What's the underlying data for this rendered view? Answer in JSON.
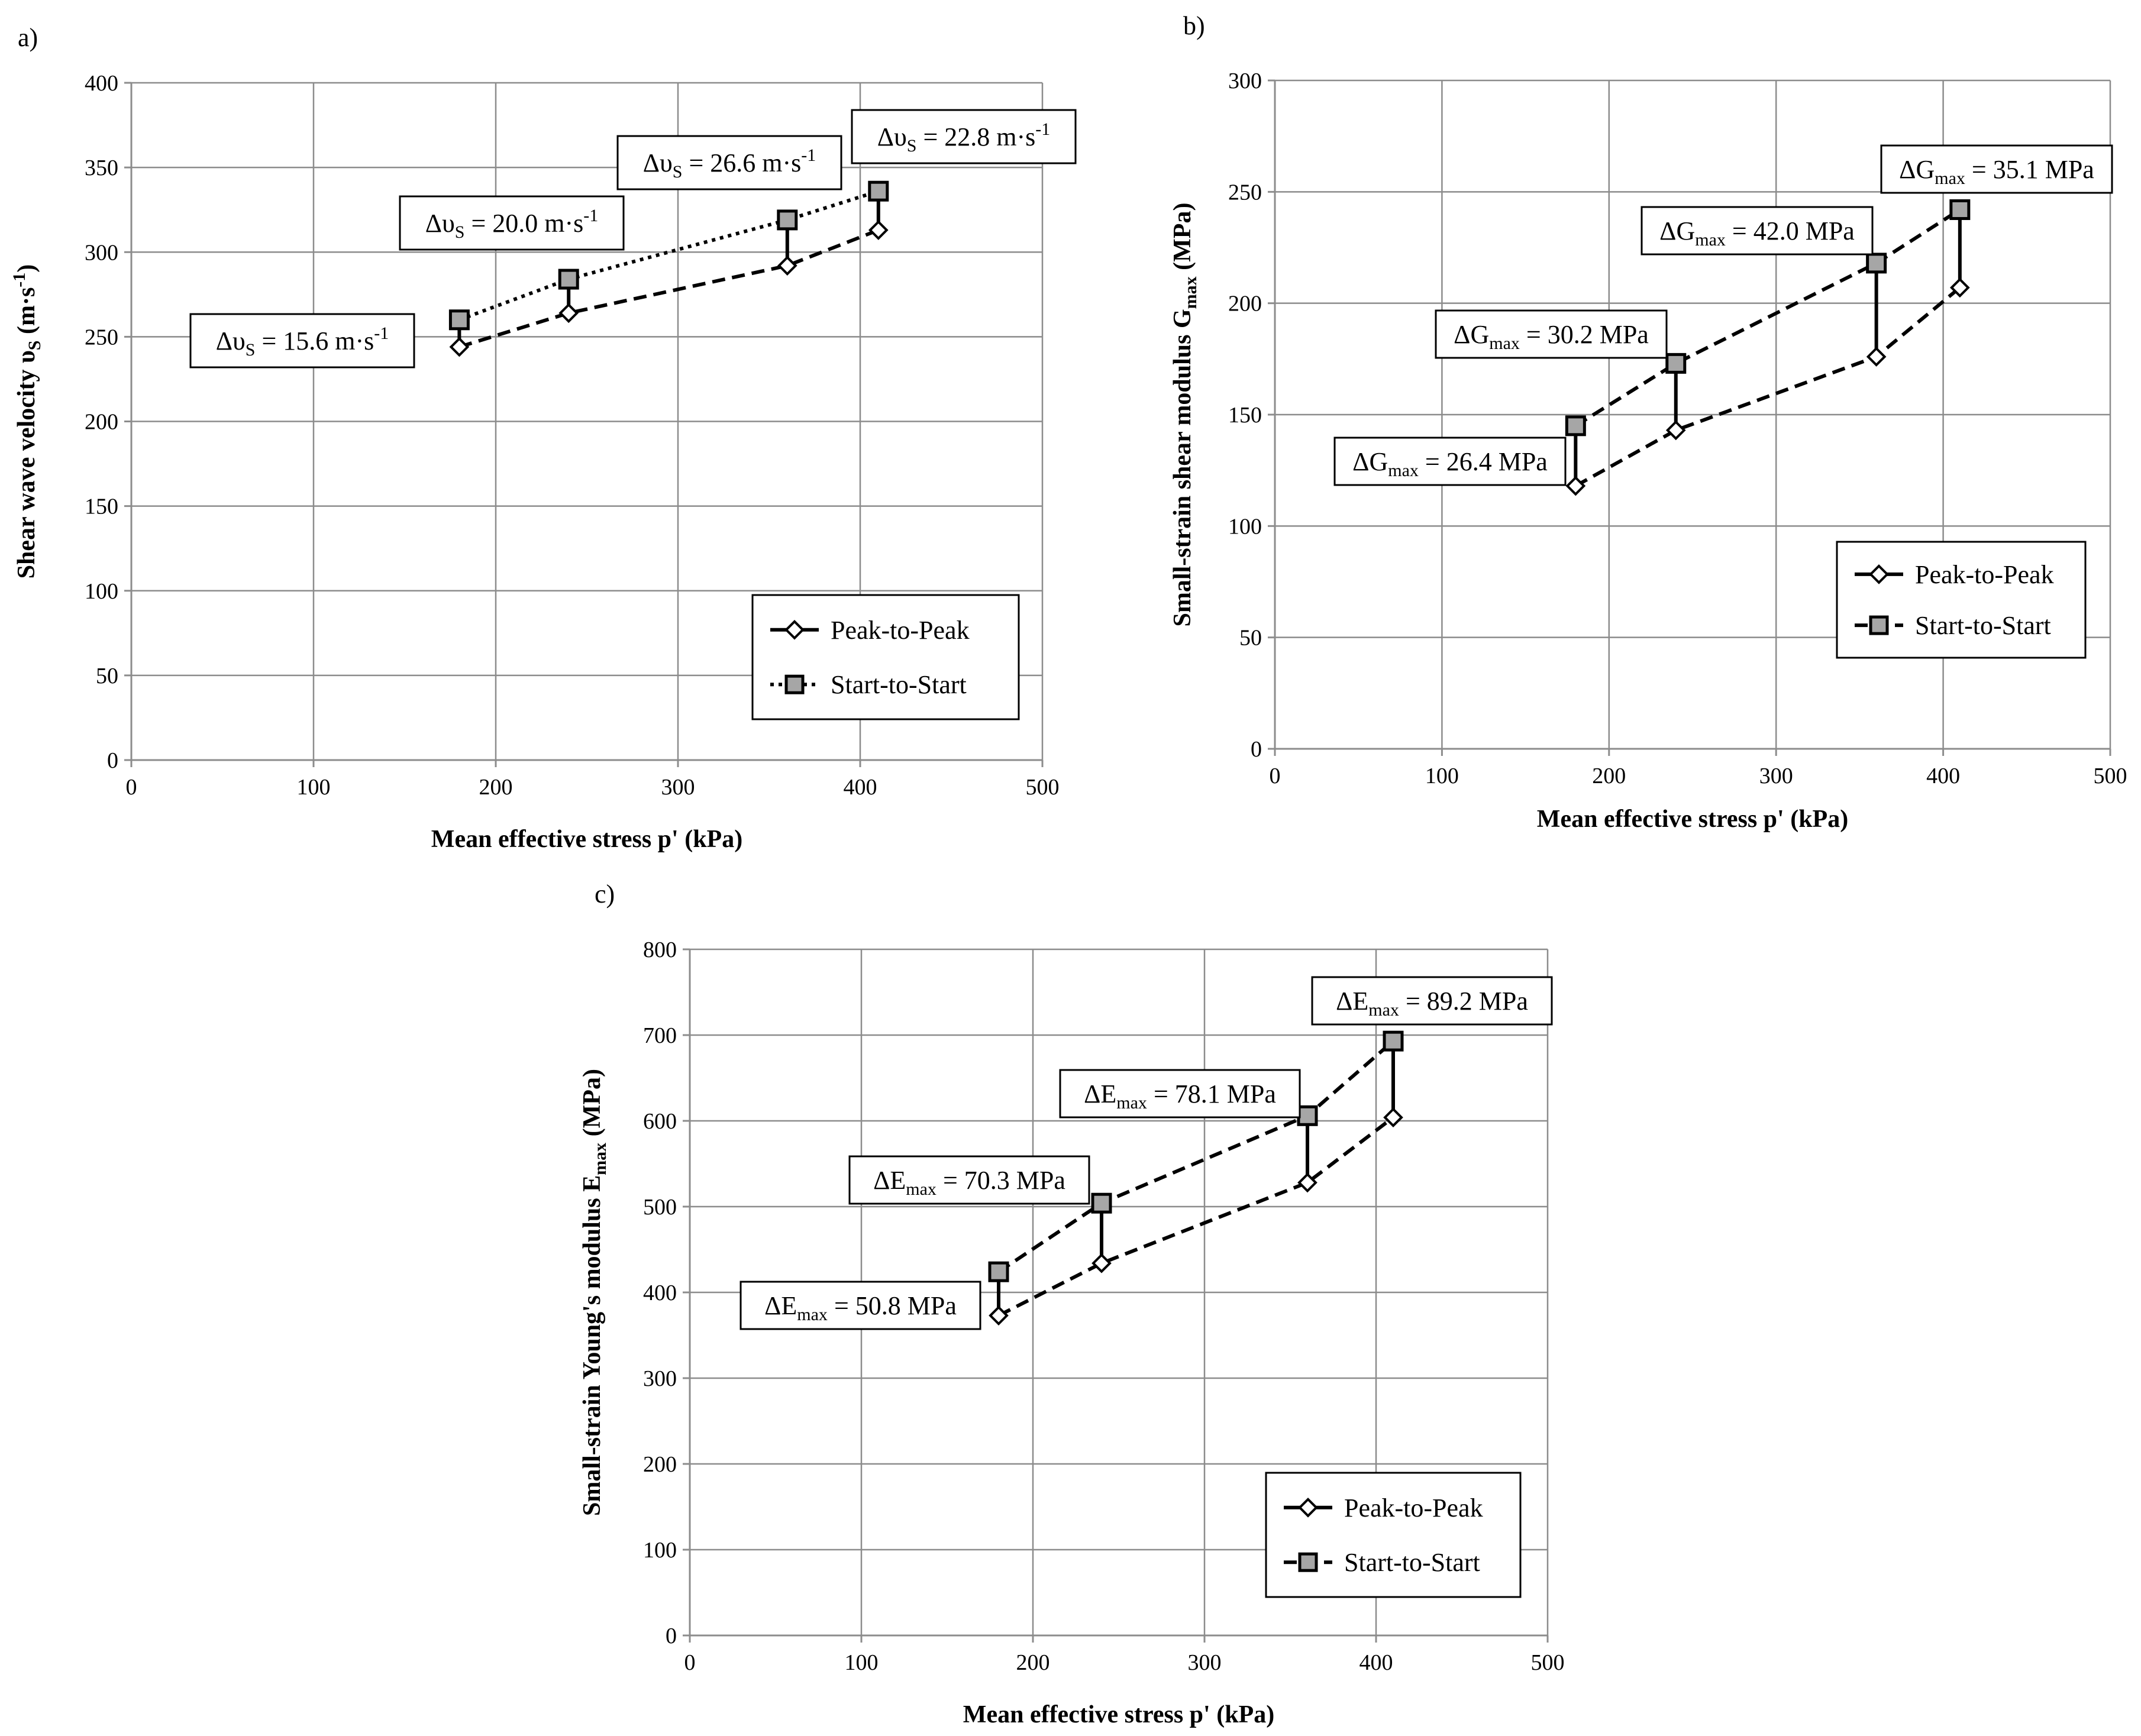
{
  "chart_data": [
    {
      "panel": "a)",
      "type": "line",
      "xlabel": "Mean effective stress p' (kPa)",
      "ylabel_main": "Shear wave velocity υ",
      "ylabel_sub": "S",
      "ylabel_unit": " (m·s",
      "ylabel_sup": "-1",
      "ylabel_end": ")",
      "xlim": [
        0,
        500
      ],
      "ylim": [
        0,
        400
      ],
      "xticks": [
        0,
        100,
        200,
        300,
        400,
        500
      ],
      "yticks": [
        0,
        50,
        100,
        150,
        200,
        250,
        300,
        350,
        400
      ],
      "x": [
        180,
        240,
        360,
        410
      ],
      "series": [
        {
          "name": "Peak-to-Peak",
          "values": [
            244,
            264,
            292,
            313
          ],
          "style": "dashed",
          "marker": "diamond"
        },
        {
          "name": "Start-to-Start",
          "values": [
            260,
            284,
            319,
            336
          ],
          "style": "dotted",
          "marker": "square"
        }
      ],
      "annotations": [
        {
          "prefix": "Δυ",
          "sub": "S",
          "text": " = 15.6 m·s",
          "sup": "-1"
        },
        {
          "prefix": "Δυ",
          "sub": "S",
          "text": " = 20.0 m·s",
          "sup": "-1"
        },
        {
          "prefix": "Δυ",
          "sub": "S",
          "text": " = 26.6 m·s",
          "sup": "-1"
        },
        {
          "prefix": "Δυ",
          "sub": "S",
          "text": " = 22.8 m·s",
          "sup": "-1"
        }
      ],
      "legend": {
        "position": "bottom-right",
        "entries": [
          "Peak-to-Peak",
          "Start-to-Start"
        ]
      }
    },
    {
      "panel": "b)",
      "type": "line",
      "xlabel": "Mean effective stress p' (kPa)",
      "ylabel_main": "Small-strain shear modulus G",
      "ylabel_sub": "max",
      "ylabel_unit": " (MPa)",
      "ylabel_sup": "",
      "ylabel_end": "",
      "xlim": [
        0,
        500
      ],
      "ylim": [
        0,
        300
      ],
      "xticks": [
        0,
        100,
        200,
        300,
        400,
        500
      ],
      "yticks": [
        0,
        50,
        100,
        150,
        200,
        250,
        300
      ],
      "x": [
        180,
        240,
        360,
        410
      ],
      "series": [
        {
          "name": "Peak-to-Peak",
          "values": [
            118,
            143,
            176,
            207
          ],
          "style": "dashed",
          "marker": "diamond"
        },
        {
          "name": "Start-to-Start",
          "values": [
            145,
            173,
            218,
            242
          ],
          "style": "dashed",
          "marker": "square"
        }
      ],
      "annotations": [
        {
          "prefix": "ΔG",
          "sub": "max",
          "text": " = 26.4 MPa",
          "sup": ""
        },
        {
          "prefix": "ΔG",
          "sub": "max",
          "text": " = 30.2 MPa",
          "sup": ""
        },
        {
          "prefix": "ΔG",
          "sub": "max",
          "text": " = 42.0 MPa",
          "sup": ""
        },
        {
          "prefix": "ΔG",
          "sub": "max",
          "text": " = 35.1 MPa",
          "sup": ""
        }
      ],
      "legend": {
        "position": "bottom-right",
        "entries": [
          "Peak-to-Peak",
          "Start-to-Start"
        ]
      }
    },
    {
      "panel": "c)",
      "type": "line",
      "xlabel": "Mean effective stress p' (kPa)",
      "ylabel_main": "Small-strain Young's modulus E",
      "ylabel_sub": "max",
      "ylabel_unit": " (MPa)",
      "ylabel_sup": "",
      "ylabel_end": "",
      "xlim": [
        0,
        500
      ],
      "ylim": [
        0,
        800
      ],
      "xticks": [
        0,
        100,
        200,
        300,
        400,
        500
      ],
      "yticks": [
        0,
        100,
        200,
        300,
        400,
        500,
        600,
        700,
        800
      ],
      "x": [
        180,
        240,
        360,
        410
      ],
      "series": [
        {
          "name": "Peak-to-Peak",
          "values": [
            373,
            434,
            528,
            604
          ],
          "style": "dashed",
          "marker": "diamond"
        },
        {
          "name": "Start-to-Start",
          "values": [
            424,
            504,
            606,
            693
          ],
          "style": "dashed",
          "marker": "square"
        }
      ],
      "annotations": [
        {
          "prefix": "ΔE",
          "sub": "max",
          "text": " = 50.8 MPa",
          "sup": ""
        },
        {
          "prefix": "ΔE",
          "sub": "max",
          "text": " = 70.3 MPa",
          "sup": ""
        },
        {
          "prefix": "ΔE",
          "sub": "max",
          "text": " = 78.1 MPa",
          "sup": ""
        },
        {
          "prefix": "ΔE",
          "sub": "max",
          "text": " = 89.2 MPa",
          "sup": ""
        }
      ],
      "legend": {
        "position": "bottom-right",
        "entries": [
          "Peak-to-Peak",
          "Start-to-Start"
        ]
      }
    }
  ]
}
